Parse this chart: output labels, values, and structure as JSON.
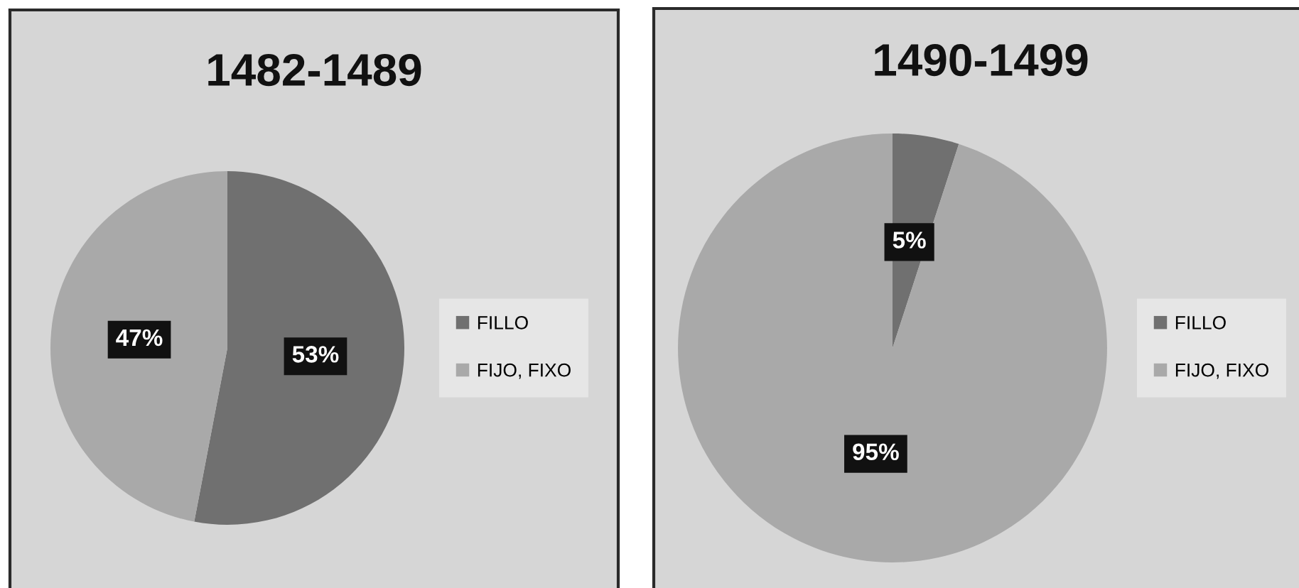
{
  "chart_data": [
    {
      "type": "pie",
      "title": "1482-1489",
      "categories": [
        "FILLO",
        "FIJO, FIXO"
      ],
      "values": [
        53,
        47
      ],
      "colors": [
        "#707070",
        "#a9a9a9"
      ],
      "value_labels": [
        "53%",
        "47%"
      ],
      "legend": "right"
    },
    {
      "type": "pie",
      "title": "1490-1499",
      "categories": [
        "FILLO",
        "FIJO, FIXO"
      ],
      "values": [
        5,
        95
      ],
      "colors": [
        "#707070",
        "#a9a9a9"
      ],
      "value_labels": [
        "5%",
        "95%"
      ],
      "legend": "right"
    }
  ]
}
